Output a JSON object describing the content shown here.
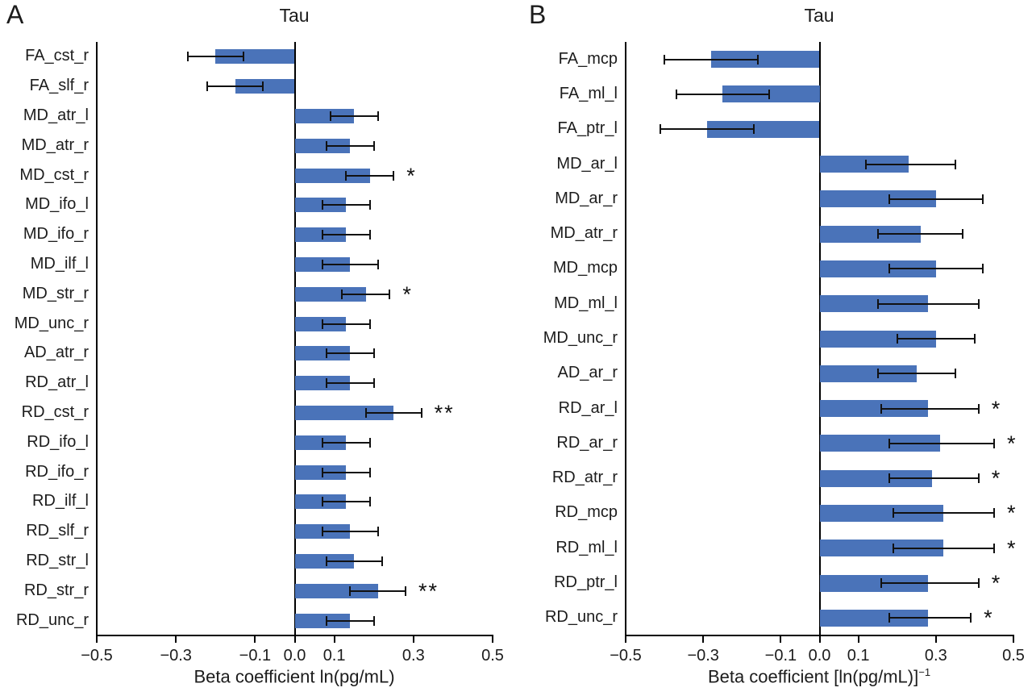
{
  "figure": {
    "background": "#ffffff",
    "bar_color": "#4a73b9",
    "error_color": "#111111",
    "axis_color": "#000000",
    "text_color": "#1c1c1c"
  },
  "chart_data": [
    {
      "type": "bar",
      "orientation": "horizontal",
      "panel_letter": "A",
      "title": "Tau",
      "xlabel": "Beta coefficient ln(pg/mL)",
      "xlabel_superscript": "",
      "xlim": [
        -0.5,
        0.5
      ],
      "grid": false,
      "xticks": [
        -0.5,
        -0.3,
        -0.1,
        0.0,
        0.1,
        0.3,
        0.5
      ],
      "xtick_labels": [
        "−0.5",
        "−0.3",
        "−0.1",
        "0.0",
        "0.1",
        "0.3",
        "0.5"
      ],
      "categories": [
        "FA_cst_r",
        "FA_slf_r",
        "MD_atr_l",
        "MD_atr_r",
        "MD_cst_r",
        "MD_ifo_l",
        "MD_ifo_r",
        "MD_ilf_l",
        "MD_str_r",
        "MD_unc_r",
        "AD_atr_r",
        "RD_atr_l",
        "RD_cst_r",
        "RD_ifo_l",
        "RD_ifo_r",
        "RD_ilf_l",
        "RD_slf_r",
        "RD_str_l",
        "RD_str_r",
        "RD_unc_r"
      ],
      "values": [
        -0.2,
        -0.15,
        0.15,
        0.14,
        0.19,
        0.13,
        0.13,
        0.14,
        0.18,
        0.13,
        0.14,
        0.14,
        0.25,
        0.13,
        0.13,
        0.13,
        0.14,
        0.15,
        0.21,
        0.14
      ],
      "ci_low": [
        -0.27,
        -0.22,
        0.09,
        0.08,
        0.13,
        0.07,
        0.07,
        0.07,
        0.12,
        0.07,
        0.08,
        0.08,
        0.18,
        0.07,
        0.07,
        0.07,
        0.07,
        0.08,
        0.14,
        0.08
      ],
      "ci_high": [
        -0.13,
        -0.08,
        0.21,
        0.2,
        0.25,
        0.19,
        0.19,
        0.21,
        0.24,
        0.19,
        0.2,
        0.2,
        0.32,
        0.19,
        0.19,
        0.19,
        0.21,
        0.22,
        0.28,
        0.2
      ],
      "sig": [
        "",
        "",
        "",
        "",
        "*",
        "",
        "",
        "",
        "*",
        "",
        "",
        "",
        "**",
        "",
        "",
        "",
        "",
        "",
        "**",
        ""
      ]
    },
    {
      "type": "bar",
      "orientation": "horizontal",
      "panel_letter": "B",
      "title": "Tau",
      "xlabel": "Beta coefficient [ln(pg/mL)]",
      "xlabel_superscript": "−1",
      "xlim": [
        -0.5,
        0.5
      ],
      "grid": false,
      "xticks": [
        -0.5,
        -0.3,
        -0.1,
        0.0,
        0.1,
        0.3,
        0.5
      ],
      "xtick_labels": [
        "−0.5",
        "−0.3",
        "−0.1",
        "0.0",
        "0.1",
        "0.3",
        "0.5"
      ],
      "categories": [
        "FA_mcp",
        "FA_ml_l",
        "FA_ptr_l",
        "MD_ar_l",
        "MD_ar_r",
        "MD_atr_r",
        "MD_mcp",
        "MD_ml_l",
        "MD_unc_r",
        "AD_ar_r",
        "RD_ar_l",
        "RD_ar_r",
        "RD_atr_r",
        "RD_mcp",
        "RD_ml_l",
        "RD_ptr_l",
        "RD_unc_r"
      ],
      "values": [
        -0.28,
        -0.25,
        -0.29,
        0.23,
        0.3,
        0.26,
        0.3,
        0.28,
        0.3,
        0.25,
        0.28,
        0.31,
        0.29,
        0.32,
        0.32,
        0.28,
        0.28
      ],
      "ci_low": [
        -0.4,
        -0.37,
        -0.41,
        0.12,
        0.18,
        0.15,
        0.18,
        0.15,
        0.2,
        0.15,
        0.16,
        0.18,
        0.18,
        0.19,
        0.19,
        0.16,
        0.18
      ],
      "ci_high": [
        -0.16,
        -0.13,
        -0.17,
        0.35,
        0.42,
        0.37,
        0.42,
        0.41,
        0.4,
        0.35,
        0.41,
        0.45,
        0.41,
        0.45,
        0.45,
        0.41,
        0.39
      ],
      "sig": [
        "",
        "",
        "",
        "",
        "",
        "",
        "",
        "",
        "",
        "",
        "*",
        "*",
        "*",
        "*",
        "*",
        "*",
        "*"
      ]
    }
  ]
}
